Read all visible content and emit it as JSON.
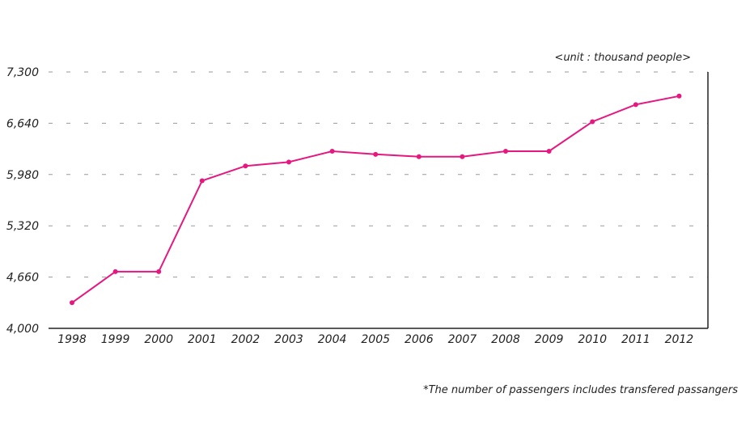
{
  "chart_data": {
    "type": "line",
    "unit_label": "<unit : thousand people>",
    "note": "*The number of passengers includes transfered passangers",
    "x": [
      "1998",
      "1999",
      "2000",
      "2001",
      "2002",
      "2003",
      "2004",
      "2005",
      "2006",
      "2007",
      "2008",
      "2009",
      "2010",
      "2011",
      "2012"
    ],
    "series": [
      {
        "values": [
          4330,
          4730,
          4730,
          5900,
          6090,
          6140,
          6280,
          6240,
          6210,
          6210,
          6280,
          6280,
          6660,
          6880,
          6990
        ],
        "color": "#e6177f"
      }
    ],
    "yticks": [
      4000,
      4660,
      5320,
      5980,
      6640,
      7300
    ],
    "ytick_labels": [
      "4,000",
      "4,660",
      "5,320",
      "5,980",
      "6,640",
      "7,300"
    ],
    "ylim": [
      4000,
      7300
    ],
    "grid": "horizontal-dashed",
    "title": "",
    "xlabel": "",
    "ylabel": ""
  }
}
